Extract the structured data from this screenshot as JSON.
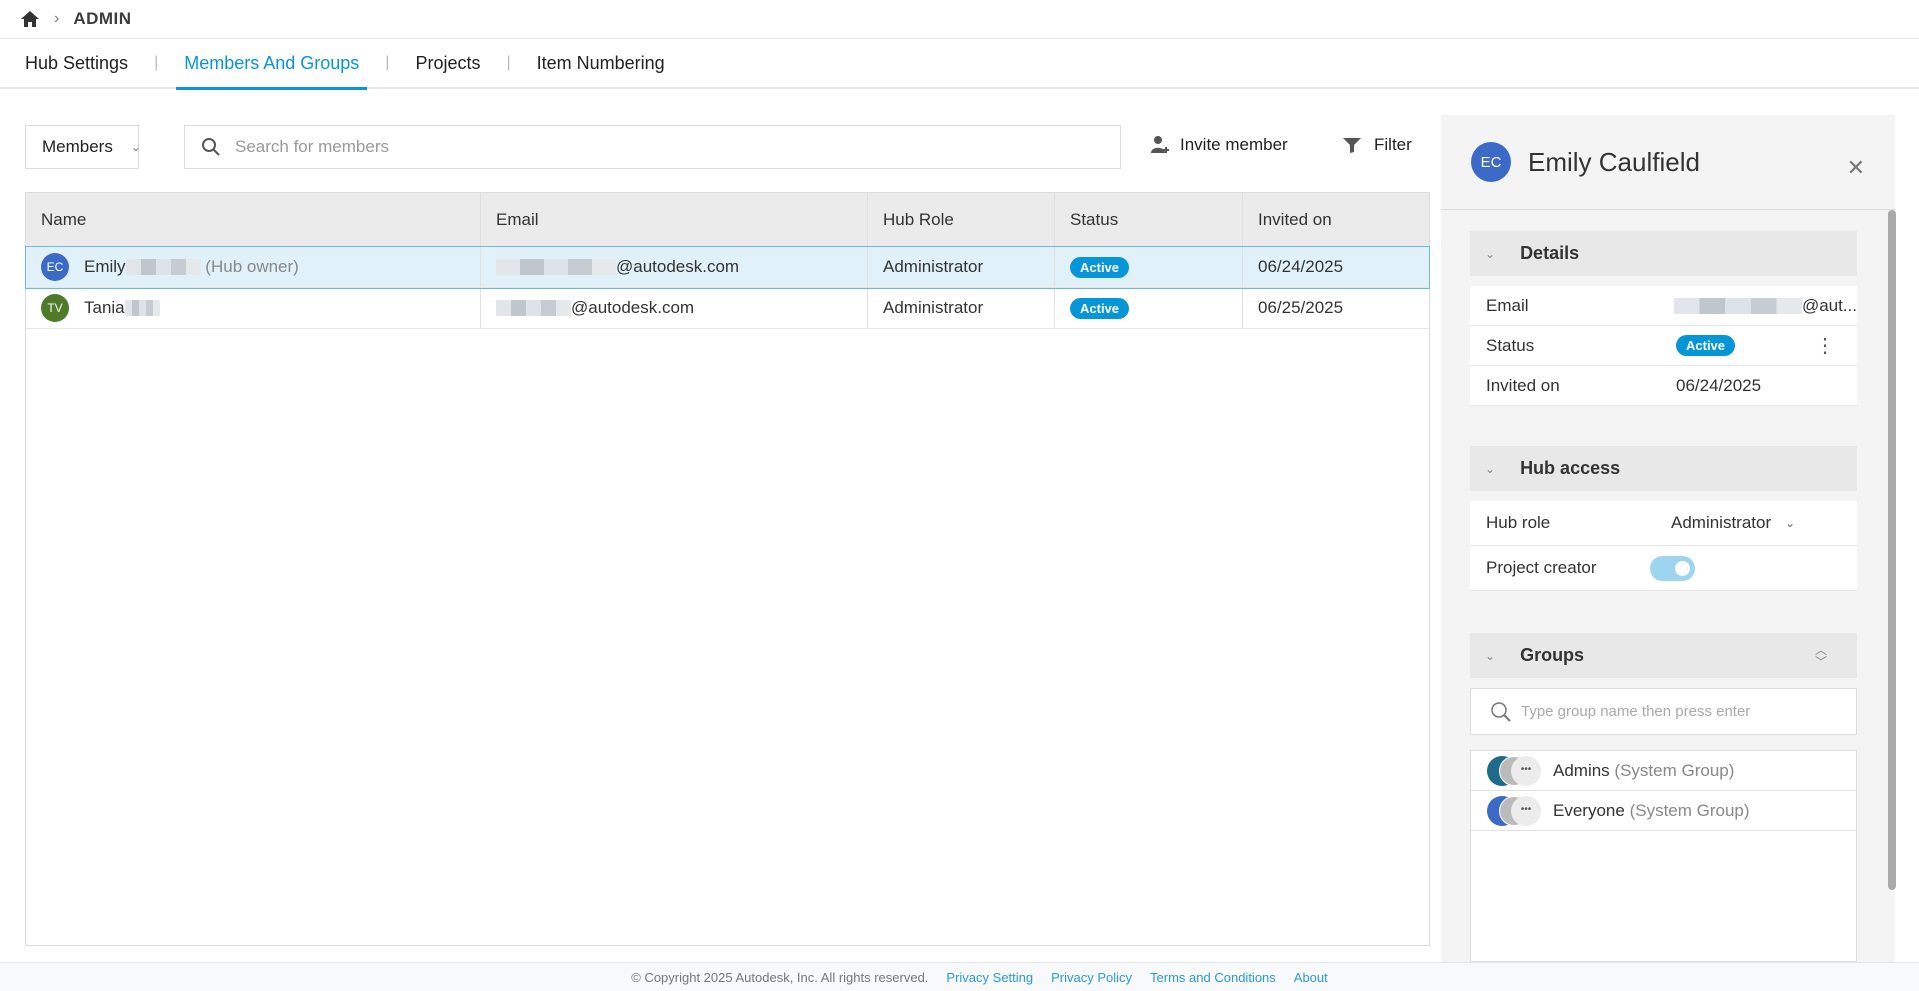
{
  "breadcrumb": {
    "home_icon": "home-icon",
    "title": "ADMIN"
  },
  "tabs": [
    {
      "label": "Hub Settings"
    },
    {
      "label": "Members And Groups",
      "active": true
    },
    {
      "label": "Projects"
    },
    {
      "label": "Item Numbering"
    }
  ],
  "toolbar": {
    "view_select": "Members",
    "search_placeholder": "Search for members",
    "invite_label": "Invite member",
    "filter_label": "Filter"
  },
  "table": {
    "columns": [
      "Name",
      "Email",
      "Hub Role",
      "Status",
      "Invited on"
    ],
    "rows": [
      {
        "initials": "EC",
        "avatar_color": "#3c6bc7",
        "name": "Emily",
        "suffix": "(Hub owner)",
        "email": "@autodesk.com",
        "role": "Administrator",
        "status": "Active",
        "invited": "06/24/2025",
        "selected": true
      },
      {
        "initials": "TV",
        "avatar_color": "#4e7a2a",
        "name": "Tania",
        "suffix": "",
        "email": "@autodesk.com",
        "role": "Administrator",
        "status": "Active",
        "invited": "06/25/2025",
        "selected": false
      }
    ]
  },
  "panel": {
    "initials": "EC",
    "name": "Emily Caulfield",
    "details": {
      "title": "Details",
      "email_label": "Email",
      "email_value": "@aut...",
      "status_label": "Status",
      "status_value": "Active",
      "invited_label": "Invited on",
      "invited_value": "06/24/2025"
    },
    "hub_access": {
      "title": "Hub access",
      "role_label": "Hub role",
      "role_value": "Administrator",
      "creator_label": "Project creator",
      "creator_enabled": true
    },
    "groups": {
      "title": "Groups",
      "search_placeholder": "Type group name then press enter",
      "items": [
        {
          "name": "Admins",
          "type": "(System Group)",
          "color": "#1f6b8c"
        },
        {
          "name": "Everyone",
          "type": "(System Group)",
          "color": "#3c6bc7"
        }
      ]
    }
  },
  "footer": {
    "copyright": "© Copyright 2025 Autodesk, Inc. All rights reserved.",
    "links": [
      "Privacy Setting",
      "Privacy Policy",
      "Terms and Conditions",
      "About"
    ]
  },
  "colors": {
    "accent": "#0696d7",
    "selected_row": "#e1f1f9"
  }
}
